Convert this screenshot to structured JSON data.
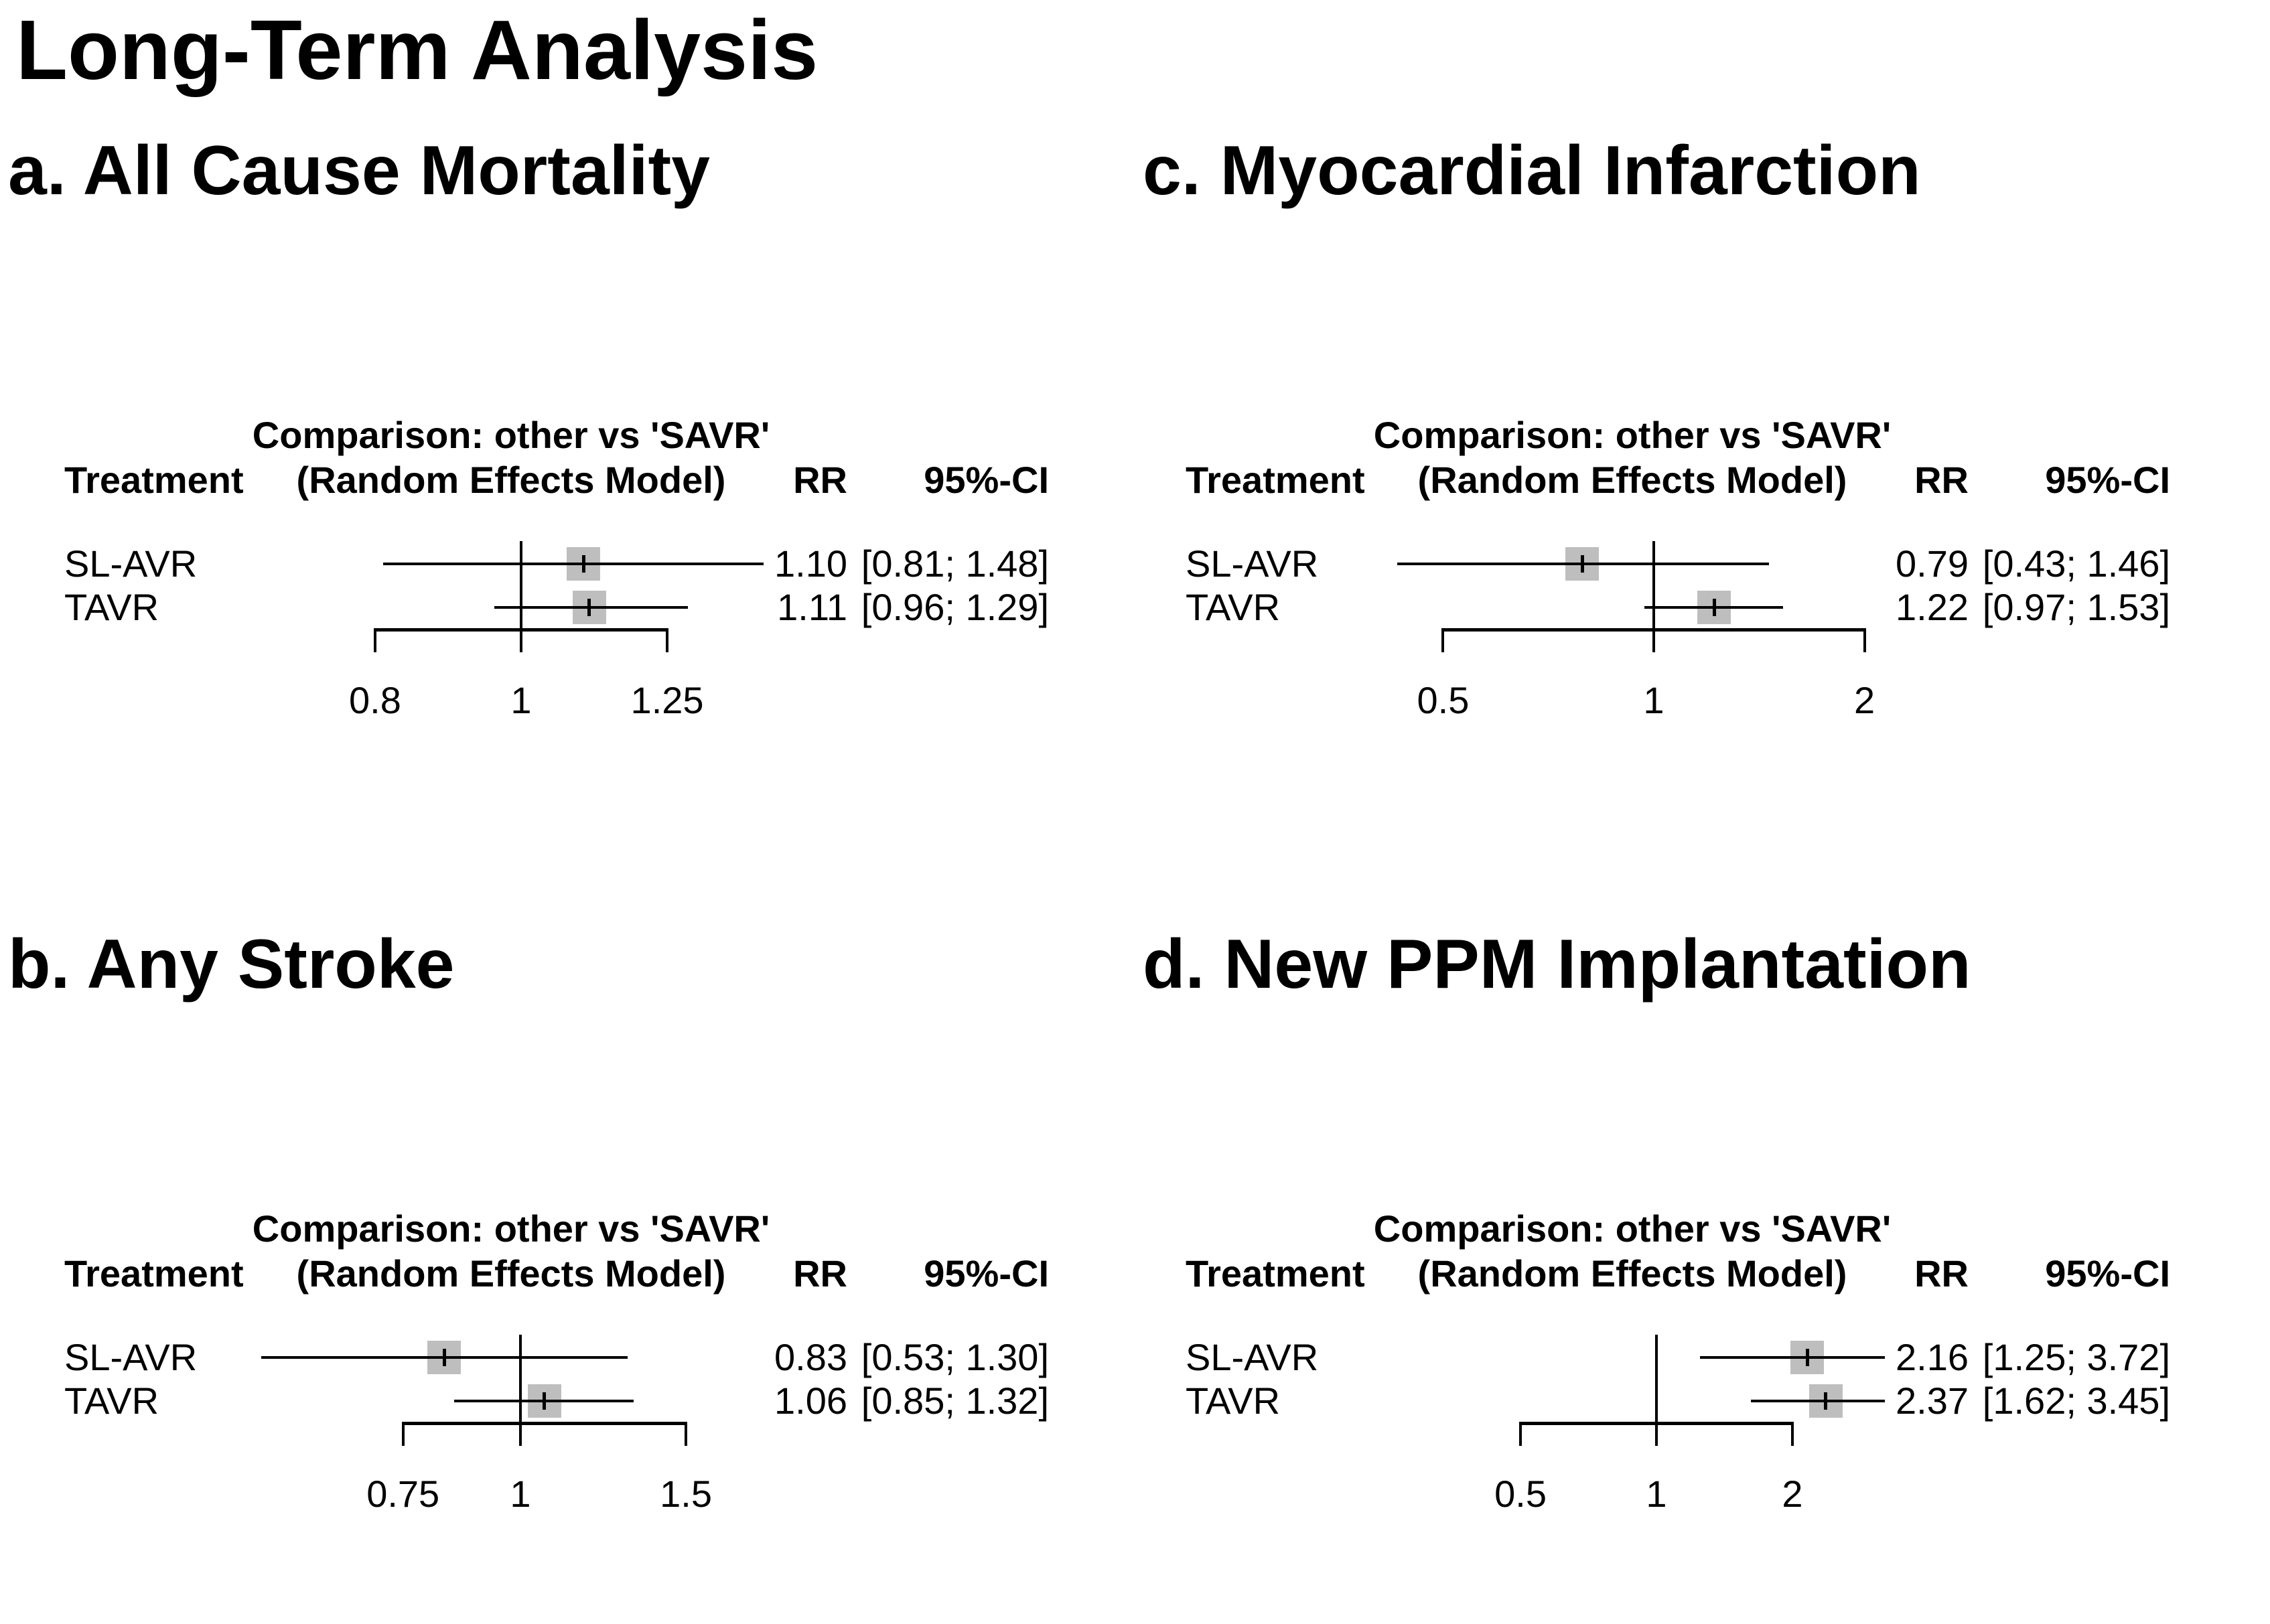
{
  "title": "Long-Term Analysis",
  "colors": {
    "background": "#ffffff",
    "text": "#000000",
    "line": "#000000",
    "square_fill": "#bebebe"
  },
  "chart_data": [
    {
      "type": "forest",
      "panel": "a",
      "title": "a. All Cause Mortality",
      "header": {
        "treatment_col": "Treatment",
        "comparison": "Comparison: other vs 'SAVR'",
        "model": "(Random Effects Model)",
        "rr_col": "RR",
        "ci_col": "95%-CI"
      },
      "x_scale": "log",
      "ref_line": 1,
      "x_ticks": [
        0.8,
        1,
        1.25
      ],
      "x_tick_labels": [
        "0.8",
        "1",
        "1.25"
      ],
      "rows": [
        {
          "treatment": "SL-AVR",
          "rr": 1.1,
          "ci_lower": 0.81,
          "ci_upper": 1.48,
          "rr_label": "1.10",
          "ci_label": "[0.81; 1.48]"
        },
        {
          "treatment": "TAVR",
          "rr": 1.11,
          "ci_lower": 0.96,
          "ci_upper": 1.29,
          "rr_label": "1.11",
          "ci_label": "[0.96; 1.29]"
        }
      ]
    },
    {
      "type": "forest",
      "panel": "b",
      "title": "b. Any Stroke",
      "header": {
        "treatment_col": "Treatment",
        "comparison": "Comparison: other vs 'SAVR'",
        "model": "(Random Effects Model)",
        "rr_col": "RR",
        "ci_col": "95%-CI"
      },
      "x_scale": "log",
      "ref_line": 1,
      "x_ticks": [
        0.75,
        1,
        1.5
      ],
      "x_tick_labels": [
        "0.75",
        "1",
        "1.5"
      ],
      "rows": [
        {
          "treatment": "SL-AVR",
          "rr": 0.83,
          "ci_lower": 0.53,
          "ci_upper": 1.3,
          "rr_label": "0.83",
          "ci_label": "[0.53; 1.30]"
        },
        {
          "treatment": "TAVR",
          "rr": 1.06,
          "ci_lower": 0.85,
          "ci_upper": 1.32,
          "rr_label": "1.06",
          "ci_label": "[0.85; 1.32]"
        }
      ]
    },
    {
      "type": "forest",
      "panel": "c",
      "title": "c. Myocardial Infarction",
      "header": {
        "treatment_col": "Treatment",
        "comparison": "Comparison: other vs 'SAVR'",
        "model": "(Random Effects Model)",
        "rr_col": "RR",
        "ci_col": "95%-CI"
      },
      "x_scale": "log",
      "ref_line": 1,
      "x_ticks": [
        0.5,
        1,
        2
      ],
      "x_tick_labels": [
        "0.5",
        "1",
        "2"
      ],
      "rows": [
        {
          "treatment": "SL-AVR",
          "rr": 0.79,
          "ci_lower": 0.43,
          "ci_upper": 1.46,
          "rr_label": "0.79",
          "ci_label": "[0.43; 1.46]"
        },
        {
          "treatment": "TAVR",
          "rr": 1.22,
          "ci_lower": 0.97,
          "ci_upper": 1.53,
          "rr_label": "1.22",
          "ci_label": "[0.97; 1.53]"
        }
      ]
    },
    {
      "type": "forest",
      "panel": "d",
      "title": "d. New PPM Implantation",
      "header": {
        "treatment_col": "Treatment",
        "comparison": "Comparison: other vs 'SAVR'",
        "model": "(Random Effects Model)",
        "rr_col": "RR",
        "ci_col": "95%-CI"
      },
      "x_scale": "log",
      "ref_line": 1,
      "x_ticks": [
        0.5,
        1,
        2
      ],
      "x_tick_labels": [
        "0.5",
        "1",
        "2"
      ],
      "rows": [
        {
          "treatment": "SL-AVR",
          "rr": 2.16,
          "ci_lower": 1.25,
          "ci_upper": 3.72,
          "rr_label": "2.16",
          "ci_label": "[1.25; 3.72]"
        },
        {
          "treatment": "TAVR",
          "rr": 2.37,
          "ci_lower": 1.62,
          "ci_upper": 3.45,
          "rr_label": "2.37",
          "ci_label": "[1.62; 3.45]"
        }
      ]
    }
  ]
}
